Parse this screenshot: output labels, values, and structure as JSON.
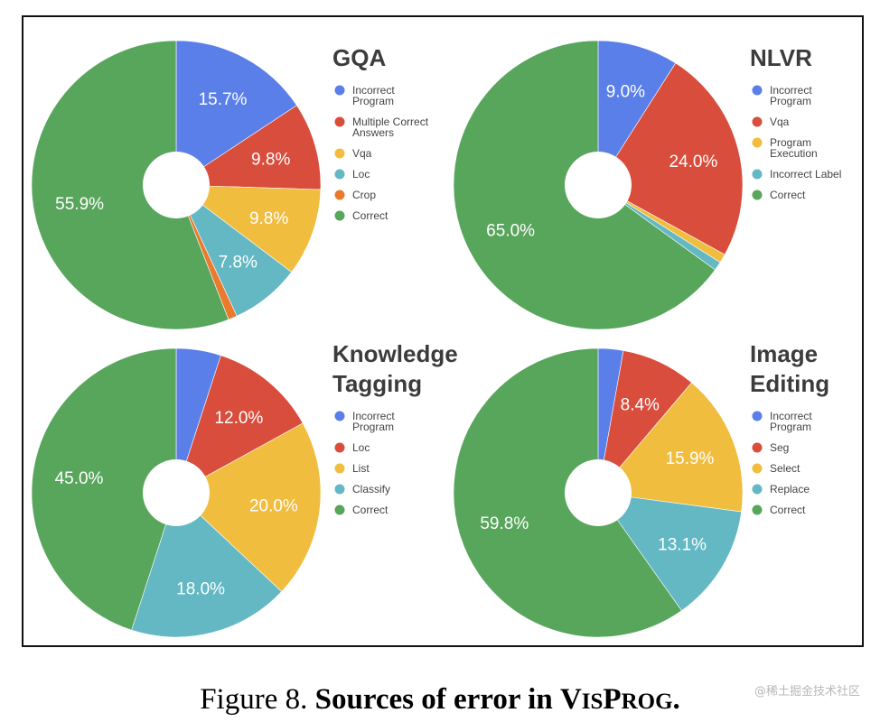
{
  "chart_data": [
    {
      "type": "pie",
      "title_lines": [
        "GQA"
      ],
      "slices": [
        {
          "name": "Incorrect Program",
          "legend_lines": [
            "Incorrect",
            "Program"
          ],
          "value": 15.7,
          "label": "15.7%",
          "color": "#5b7fe8"
        },
        {
          "name": "Multiple Correct Answers",
          "legend_lines": [
            "Multiple Correct",
            "Answers"
          ],
          "value": 9.8,
          "label": "9.8%",
          "color": "#d84d3c"
        },
        {
          "name": "Vqa",
          "legend_lines": [
            "Vqa"
          ],
          "value": 9.8,
          "label": "9.8%",
          "color": "#f0bd3f"
        },
        {
          "name": "Loc",
          "legend_lines": [
            "Loc"
          ],
          "value": 7.8,
          "label": "7.8%",
          "color": "#63b8c3"
        },
        {
          "name": "Crop",
          "legend_lines": [
            "Crop"
          ],
          "value": 1.0,
          "label": "",
          "color": "#ea7a2d"
        },
        {
          "name": "Correct",
          "legend_lines": [
            "Correct"
          ],
          "value": 55.9,
          "label": "55.9%",
          "color": "#58a55c"
        }
      ]
    },
    {
      "type": "pie",
      "title_lines": [
        "NLVR"
      ],
      "slices": [
        {
          "name": "Incorrect Program",
          "legend_lines": [
            "Incorrect",
            "Program"
          ],
          "value": 9.0,
          "label": "9.0%",
          "color": "#5b7fe8"
        },
        {
          "name": "Vqa",
          "legend_lines": [
            "Vqa"
          ],
          "value": 24.0,
          "label": "24.0%",
          "color": "#d84d3c"
        },
        {
          "name": "Program Execution",
          "legend_lines": [
            "Program",
            "Execution"
          ],
          "value": 1.0,
          "label": "",
          "color": "#f0bd3f"
        },
        {
          "name": "Incorrect Label",
          "legend_lines": [
            "Incorrect Label"
          ],
          "value": 1.0,
          "label": "",
          "color": "#63b8c3"
        },
        {
          "name": "Correct",
          "legend_lines": [
            "Correct"
          ],
          "value": 65.0,
          "label": "65.0%",
          "color": "#58a55c"
        }
      ]
    },
    {
      "type": "pie",
      "title_lines": [
        "Knowledge",
        "Tagging"
      ],
      "slices": [
        {
          "name": "Incorrect Program",
          "legend_lines": [
            "Incorrect",
            "Program"
          ],
          "value": 5.0,
          "label": "",
          "color": "#5b7fe8"
        },
        {
          "name": "Loc",
          "legend_lines": [
            "Loc"
          ],
          "value": 12.0,
          "label": "12.0%",
          "color": "#d84d3c"
        },
        {
          "name": "List",
          "legend_lines": [
            "List"
          ],
          "value": 20.0,
          "label": "20.0%",
          "color": "#f0bd3f"
        },
        {
          "name": "Classify",
          "legend_lines": [
            "Classify"
          ],
          "value": 18.0,
          "label": "18.0%",
          "color": "#63b8c3"
        },
        {
          "name": "Correct",
          "legend_lines": [
            "Correct"
          ],
          "value": 45.0,
          "label": "45.0%",
          "color": "#58a55c"
        }
      ]
    },
    {
      "type": "pie",
      "title_lines": [
        "Image",
        "Editing"
      ],
      "slices": [
        {
          "name": "Incorrect Program",
          "legend_lines": [
            "Incorrect",
            "Program"
          ],
          "value": 2.8,
          "label": "",
          "color": "#5b7fe8"
        },
        {
          "name": "Seg",
          "legend_lines": [
            "Seg"
          ],
          "value": 8.4,
          "label": "8.4%",
          "color": "#d84d3c"
        },
        {
          "name": "Select",
          "legend_lines": [
            "Select"
          ],
          "value": 15.9,
          "label": "15.9%",
          "color": "#f0bd3f"
        },
        {
          "name": "Replace",
          "legend_lines": [
            "Replace"
          ],
          "value": 13.1,
          "label": "13.1%",
          "color": "#63b8c3"
        },
        {
          "name": "Correct",
          "legend_lines": [
            "Correct"
          ],
          "value": 59.8,
          "label": "59.8%",
          "color": "#58a55c"
        }
      ]
    }
  ],
  "caption": {
    "figure": "Figure 8.",
    "text_bold": "Sources of error in",
    "name_lead_1": "V",
    "name_small_1": "IS",
    "name_lead_2": "P",
    "name_small_2": "ROG",
    "end": "."
  },
  "watermark": "@稀土掘金技术社区"
}
